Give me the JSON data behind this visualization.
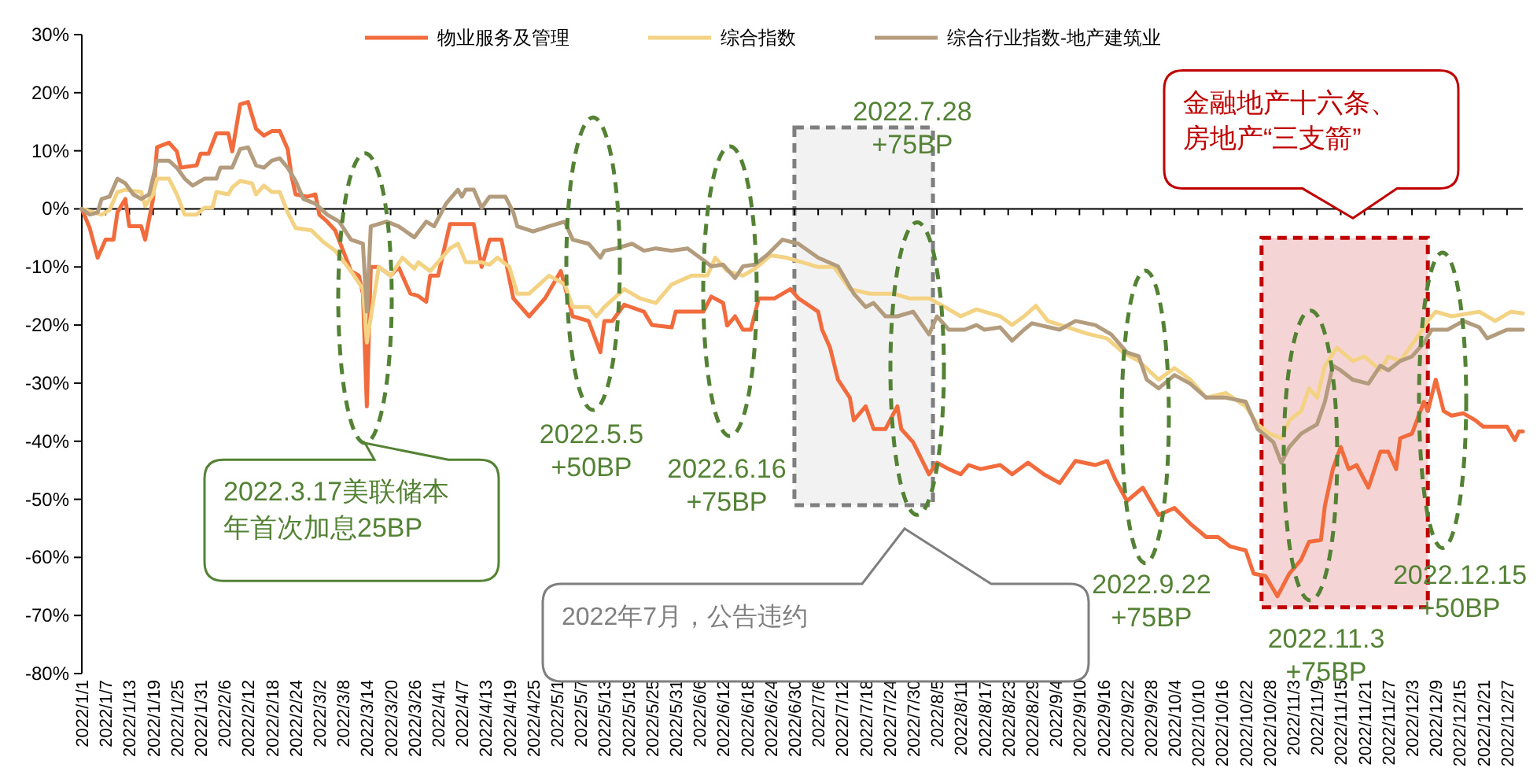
{
  "chart_data": {
    "type": "line",
    "legend": "top",
    "xlim": [
      "2022-01-01",
      "2022-12-31"
    ],
    "ylim": [
      -80,
      30
    ],
    "yticks": [
      {
        "value": 30,
        "label": "30%"
      },
      {
        "value": 20,
        "label": "20%"
      },
      {
        "value": 10,
        "label": "10%"
      },
      {
        "value": 0,
        "label": "0%"
      },
      {
        "value": -10,
        "label": "-10%"
      },
      {
        "value": -20,
        "label": "-20%"
      },
      {
        "value": -30,
        "label": "-30%"
      },
      {
        "value": -40,
        "label": "-40%"
      },
      {
        "value": -50,
        "label": "-50%"
      },
      {
        "value": -60,
        "label": "-60%"
      },
      {
        "value": -70,
        "label": "-70%"
      },
      {
        "value": -80,
        "label": "-80%"
      }
    ],
    "xticks": [
      {
        "value": "2022-01-01",
        "label": "2022/1/1"
      },
      {
        "value": "2022-01-07",
        "label": "2022/1/7"
      },
      {
        "value": "2022-01-13",
        "label": "2022/1/13"
      },
      {
        "value": "2022-01-19",
        "label": "2022/1/19"
      },
      {
        "value": "2022-01-25",
        "label": "2022/1/25"
      },
      {
        "value": "2022-01-31",
        "label": "2022/1/31"
      },
      {
        "value": "2022-02-06",
        "label": "2022/2/6"
      },
      {
        "value": "2022-02-12",
        "label": "2022/2/12"
      },
      {
        "value": "2022-02-18",
        "label": "2022/2/18"
      },
      {
        "value": "2022-02-24",
        "label": "2022/2/24"
      },
      {
        "value": "2022-03-02",
        "label": "2022/3/2"
      },
      {
        "value": "2022-03-08",
        "label": "2022/3/8"
      },
      {
        "value": "2022-03-14",
        "label": "2022/3/14"
      },
      {
        "value": "2022-03-20",
        "label": "2022/3/20"
      },
      {
        "value": "2022-03-26",
        "label": "2022/3/26"
      },
      {
        "value": "2022-04-01",
        "label": "2022/4/1"
      },
      {
        "value": "2022-04-07",
        "label": "2022/4/7"
      },
      {
        "value": "2022-04-13",
        "label": "2022/4/13"
      },
      {
        "value": "2022-04-19",
        "label": "2022/4/19"
      },
      {
        "value": "2022-04-25",
        "label": "2022/4/25"
      },
      {
        "value": "2022-05-01",
        "label": "2022/5/1"
      },
      {
        "value": "2022-05-07",
        "label": "2022/5/7"
      },
      {
        "value": "2022-05-13",
        "label": "2022/5/13"
      },
      {
        "value": "2022-05-19",
        "label": "2022/5/19"
      },
      {
        "value": "2022-05-25",
        "label": "2022/5/25"
      },
      {
        "value": "2022-05-31",
        "label": "2022/5/31"
      },
      {
        "value": "2022-06-06",
        "label": "2022/6/6"
      },
      {
        "value": "2022-06-12",
        "label": "2022/6/12"
      },
      {
        "value": "2022-06-18",
        "label": "2022/6/18"
      },
      {
        "value": "2022-06-24",
        "label": "2022/6/24"
      },
      {
        "value": "2022-06-30",
        "label": "2022/6/30"
      },
      {
        "value": "2022-07-06",
        "label": "2022/7/6"
      },
      {
        "value": "2022-07-12",
        "label": "2022/7/12"
      },
      {
        "value": "2022-07-18",
        "label": "2022/7/18"
      },
      {
        "value": "2022-07-24",
        "label": "2022/7/24"
      },
      {
        "value": "2022-07-30",
        "label": "2022/7/30"
      },
      {
        "value": "2022-08-05",
        "label": "2022/8/5"
      },
      {
        "value": "2022-08-11",
        "label": "2022/8/11"
      },
      {
        "value": "2022-08-17",
        "label": "2022/8/17"
      },
      {
        "value": "2022-08-23",
        "label": "2022/8/23"
      },
      {
        "value": "2022-08-29",
        "label": "2022/8/29"
      },
      {
        "value": "2022-09-04",
        "label": "2022/9/4"
      },
      {
        "value": "2022-09-10",
        "label": "2022/9/10"
      },
      {
        "value": "2022-09-16",
        "label": "2022/9/16"
      },
      {
        "value": "2022-09-22",
        "label": "2022/9/22"
      },
      {
        "value": "2022-09-28",
        "label": "2022/9/28"
      },
      {
        "value": "2022-10-04",
        "label": "2022/10/4"
      },
      {
        "value": "2022-10-10",
        "label": "2022/10/10"
      },
      {
        "value": "2022-10-16",
        "label": "2022/10/16"
      },
      {
        "value": "2022-10-22",
        "label": "2022/10/22"
      },
      {
        "value": "2022-10-28",
        "label": "2022/10/28"
      },
      {
        "value": "2022-11-03",
        "label": "2022/11/3"
      },
      {
        "value": "2022-11-09",
        "label": "2022/11/9"
      },
      {
        "value": "2022-11-15",
        "label": "2022/11/15"
      },
      {
        "value": "2022-11-21",
        "label": "2022/11/21"
      },
      {
        "value": "2022-11-27",
        "label": "2022/11/27"
      },
      {
        "value": "2022-12-03",
        "label": "2022/12/3"
      },
      {
        "value": "2022-12-09",
        "label": "2022/12/9"
      },
      {
        "value": "2022-12-15",
        "label": "2022/12/15"
      },
      {
        "value": "2022-12-21",
        "label": "2022/12/21"
      },
      {
        "value": "2022-12-27",
        "label": "2022/12/27"
      }
    ],
    "bands": [
      {
        "axis": "x",
        "from": "2022-06-30",
        "to": "2022-08-04",
        "color": "#f2f2f2"
      },
      {
        "axis": "x",
        "from": "2022-10-26",
        "to": "2022-12-07",
        "color": "#f4d4d4"
      }
    ],
    "series": [
      {
        "name": "物业服务及管理",
        "color": "#f26b3d",
        "x": [
          "2022-01-01",
          "2022-01-03",
          "2022-01-05",
          "2022-01-07",
          "2022-01-09",
          "2022-01-10",
          "2022-01-12",
          "2022-01-13",
          "2022-01-16",
          "2022-01-17",
          "2022-01-19",
          "2022-01-20",
          "2022-01-23",
          "2022-01-25",
          "2022-01-26",
          "2022-01-30",
          "2022-01-31",
          "2022-02-02",
          "2022-02-04",
          "2022-02-07",
          "2022-02-08",
          "2022-02-10",
          "2022-02-12",
          "2022-02-14",
          "2022-02-16",
          "2022-02-18",
          "2022-02-20",
          "2022-02-22",
          "2022-02-23",
          "2022-02-24",
          "2022-02-27",
          "2022-03-01",
          "2022-03-02",
          "2022-03-04",
          "2022-03-06",
          "2022-03-10",
          "2022-03-12",
          "2022-03-13",
          "2022-03-14",
          "2022-03-15",
          "2022-03-17",
          "2022-03-20",
          "2022-03-22",
          "2022-03-25",
          "2022-03-27",
          "2022-03-29",
          "2022-03-30",
          "2022-04-01",
          "2022-04-04",
          "2022-04-10",
          "2022-04-12",
          "2022-04-14",
          "2022-04-17",
          "2022-04-20",
          "2022-04-24",
          "2022-04-28",
          "2022-05-02",
          "2022-05-05",
          "2022-05-09",
          "2022-05-12",
          "2022-05-13",
          "2022-05-15",
          "2022-05-18",
          "2022-05-23",
          "2022-05-25",
          "2022-05-30",
          "2022-05-31",
          "2022-06-07",
          "2022-06-09",
          "2022-06-12",
          "2022-06-13",
          "2022-06-15",
          "2022-06-17",
          "2022-06-19",
          "2022-06-21",
          "2022-06-25",
          "2022-06-29",
          "2022-07-01",
          "2022-07-06",
          "2022-07-07",
          "2022-07-09",
          "2022-07-11",
          "2022-07-14",
          "2022-07-15",
          "2022-07-18",
          "2022-07-20",
          "2022-07-23",
          "2022-07-26",
          "2022-07-27",
          "2022-07-30",
          "2022-08-03",
          "2022-08-05",
          "2022-08-08",
          "2022-08-11",
          "2022-08-13",
          "2022-08-16",
          "2022-08-21",
          "2022-08-24",
          "2022-08-28",
          "2022-09-01",
          "2022-09-05",
          "2022-09-09",
          "2022-09-14",
          "2022-09-17",
          "2022-09-19",
          "2022-09-22",
          "2022-09-26",
          "2022-09-30",
          "2022-10-04",
          "2022-10-08",
          "2022-10-12",
          "2022-10-15",
          "2022-10-18",
          "2022-10-22",
          "2022-10-24",
          "2022-10-27",
          "2022-10-30",
          "2022-11-02",
          "2022-11-05",
          "2022-11-07",
          "2022-11-10",
          "2022-11-11",
          "2022-11-13",
          "2022-11-15",
          "2022-11-17",
          "2022-11-19",
          "2022-11-22",
          "2022-11-25",
          "2022-11-27",
          "2022-11-29",
          "2022-11-30",
          "2022-12-03",
          "2022-12-06",
          "2022-12-07",
          "2022-12-09",
          "2022-12-11",
          "2022-12-13",
          "2022-12-16",
          "2022-12-19",
          "2022-12-21",
          "2022-12-27",
          "2022-12-29",
          "2022-12-30",
          "2022-12-31"
        ],
        "values": [
          0,
          -3.3,
          -8.4,
          -5.3,
          -5.3,
          -0.6,
          1.7,
          -3,
          -3,
          -5.3,
          1.7,
          10.6,
          11.4,
          9.9,
          7.1,
          7.5,
          9.5,
          9.5,
          13,
          13,
          9.9,
          18,
          18.4,
          13.8,
          12.6,
          13.4,
          13.4,
          10.3,
          5.6,
          2.5,
          2.1,
          2.5,
          -1,
          -2.2,
          -3.7,
          -10.7,
          -11.5,
          -14.6,
          -34,
          -10,
          -10,
          -11.5,
          -10,
          -14.6,
          -15,
          -16,
          -11.5,
          -11.5,
          -2.6,
          -2.6,
          -10,
          -5.3,
          -5.3,
          -15.4,
          -18.5,
          -15.4,
          -10.7,
          -18.5,
          -19.3,
          -24.7,
          -19.3,
          -19.3,
          -16.5,
          -17.7,
          -20,
          -20.4,
          -17.7,
          -17.7,
          -15.1,
          -16.2,
          -20.1,
          -18.5,
          -20.8,
          -20.8,
          -15.4,
          -15.4,
          -13.8,
          -15.4,
          -17.7,
          -20.8,
          -23.9,
          -29.4,
          -32.5,
          -36.4,
          -34,
          -37.9,
          -37.9,
          -34,
          -37.9,
          -40.2,
          -45.7,
          -43.7,
          -44.8,
          -45.7,
          -44.1,
          -44.8,
          -44.1,
          -45.7,
          -43.7,
          -45.7,
          -47.2,
          -43.4,
          -44.1,
          -43.4,
          -46.5,
          -50.3,
          -48,
          -52.7,
          -51.5,
          -54.2,
          -56.5,
          -56.5,
          -58.1,
          -58.8,
          -62.8,
          -63.2,
          -66.7,
          -62.8,
          -60.4,
          -57.3,
          -57,
          -51.1,
          -44.8,
          -41,
          -44.8,
          -44.1,
          -48,
          -41.8,
          -41.8,
          -44.8,
          -39.5,
          -38.7,
          -33.2,
          -34.8,
          -29.4,
          -34.8,
          -35.6,
          -35.2,
          -36.4,
          -37.5,
          -37.5,
          -39.8,
          -38.3,
          -38.3
        ]
      },
      {
        "name": "综合指数",
        "color": "#f3d383",
        "x": [
          "2022-01-01",
          "2022-01-04",
          "2022-01-06",
          "2022-01-08",
          "2022-01-10",
          "2022-01-12",
          "2022-01-16",
          "2022-01-17",
          "2022-01-19",
          "2022-01-20",
          "2022-01-23",
          "2022-01-25",
          "2022-01-27",
          "2022-01-30",
          "2022-02-01",
          "2022-02-03",
          "2022-02-04",
          "2022-02-07",
          "2022-02-08",
          "2022-02-10",
          "2022-02-13",
          "2022-02-14",
          "2022-02-16",
          "2022-02-18",
          "2022-02-20",
          "2022-02-22",
          "2022-02-24",
          "2022-02-28",
          "2022-03-03",
          "2022-03-06",
          "2022-03-10",
          "2022-03-13",
          "2022-03-14",
          "2022-03-17",
          "2022-03-20",
          "2022-03-23",
          "2022-03-26",
          "2022-03-27",
          "2022-03-30",
          "2022-04-02",
          "2022-04-04",
          "2022-04-06",
          "2022-04-08",
          "2022-04-12",
          "2022-04-14",
          "2022-04-16",
          "2022-04-19",
          "2022-04-21",
          "2022-04-24",
          "2022-04-29",
          "2022-05-03",
          "2022-05-05",
          "2022-05-09",
          "2022-05-11",
          "2022-05-13",
          "2022-05-18",
          "2022-05-22",
          "2022-05-26",
          "2022-05-30",
          "2022-06-04",
          "2022-06-08",
          "2022-06-10",
          "2022-06-13",
          "2022-06-17",
          "2022-06-20",
          "2022-06-24",
          "2022-06-28",
          "2022-07-02",
          "2022-07-06",
          "2022-07-10",
          "2022-07-14",
          "2022-07-19",
          "2022-07-25",
          "2022-07-29",
          "2022-08-03",
          "2022-08-07",
          "2022-08-11",
          "2022-08-15",
          "2022-08-21",
          "2022-08-24",
          "2022-08-27",
          "2022-08-30",
          "2022-09-02",
          "2022-09-12",
          "2022-09-17",
          "2022-09-21",
          "2022-09-25",
          "2022-09-30",
          "2022-10-04",
          "2022-10-08",
          "2022-10-12",
          "2022-10-17",
          "2022-10-22",
          "2022-10-25",
          "2022-10-28",
          "2022-10-31",
          "2022-11-02",
          "2022-11-05",
          "2022-11-07",
          "2022-11-09",
          "2022-11-11",
          "2022-11-14",
          "2022-11-18",
          "2022-11-21",
          "2022-11-25",
          "2022-11-27",
          "2022-11-30",
          "2022-12-04",
          "2022-12-07",
          "2022-12-09",
          "2022-12-13",
          "2022-12-20",
          "2022-12-24",
          "2022-12-28",
          "2022-12-31"
        ],
        "values": [
          0,
          -0.6,
          -1,
          -0.2,
          2.9,
          3.3,
          2.9,
          0.5,
          2.5,
          5.2,
          5.2,
          2.5,
          -1,
          -1,
          0.2,
          0.2,
          2.9,
          2.5,
          3.7,
          4.8,
          4.4,
          2.5,
          4,
          2.9,
          2.9,
          -0.6,
          -3.3,
          -3.7,
          -5.7,
          -7.2,
          -10.7,
          -13.8,
          -23,
          -10,
          -11.5,
          -8.4,
          -10.3,
          -9.2,
          -10.7,
          -8.4,
          -6.8,
          -6,
          -9.2,
          -9.2,
          -9.6,
          -8.4,
          -10,
          -14.6,
          -14.6,
          -11.5,
          -13,
          -16.9,
          -16.9,
          -18.5,
          -16.9,
          -13.8,
          -15.4,
          -16.2,
          -13,
          -11.5,
          -11.5,
          -8.4,
          -10.7,
          -11.5,
          -10.3,
          -8,
          -8.4,
          -9.2,
          -10,
          -10,
          -13.8,
          -14.6,
          -14.6,
          -15.4,
          -15.4,
          -16.9,
          -18.5,
          -17.3,
          -18.5,
          -20,
          -18.5,
          -16.7,
          -19.3,
          -21.5,
          -22.3,
          -24.7,
          -26.2,
          -29.4,
          -27.4,
          -29.4,
          -32.5,
          -31.7,
          -34,
          -37.1,
          -38.7,
          -39.5,
          -36.4,
          -34.8,
          -30.9,
          -32.5,
          -27,
          -23.9,
          -26.2,
          -25.4,
          -27.8,
          -25.4,
          -26.2,
          -22.4,
          -19.3,
          -17.7,
          -18.5,
          -17.7,
          -19.3,
          -17.7,
          -18
        ]
      },
      {
        "name": "综合行业指数-地产建筑业",
        "color": "#b39c7d",
        "x": [
          "2022-01-01",
          "2022-01-03",
          "2022-01-05",
          "2022-01-06",
          "2022-01-08",
          "2022-01-10",
          "2022-01-12",
          "2022-01-14",
          "2022-01-16",
          "2022-01-18",
          "2022-01-20",
          "2022-01-23",
          "2022-01-25",
          "2022-01-27",
          "2022-01-29",
          "2022-02-01",
          "2022-02-04",
          "2022-02-05",
          "2022-02-08",
          "2022-02-10",
          "2022-02-12",
          "2022-02-14",
          "2022-02-16",
          "2022-02-18",
          "2022-02-20",
          "2022-02-22",
          "2022-02-24",
          "2022-02-26",
          "2022-03-01",
          "2022-03-04",
          "2022-03-07",
          "2022-03-10",
          "2022-03-13",
          "2022-03-14",
          "2022-03-15",
          "2022-03-19",
          "2022-03-22",
          "2022-03-26",
          "2022-03-29",
          "2022-03-31",
          "2022-04-03",
          "2022-04-06",
          "2022-04-07",
          "2022-04-08",
          "2022-04-10",
          "2022-04-12",
          "2022-04-14",
          "2022-04-18",
          "2022-04-20",
          "2022-04-21",
          "2022-04-25",
          "2022-04-29",
          "2022-05-03",
          "2022-05-05",
          "2022-05-09",
          "2022-05-12",
          "2022-05-13",
          "2022-05-16",
          "2022-05-20",
          "2022-05-23",
          "2022-05-26",
          "2022-05-30",
          "2022-06-03",
          "2022-06-07",
          "2022-06-09",
          "2022-06-12",
          "2022-06-15",
          "2022-06-17",
          "2022-06-20",
          "2022-06-23",
          "2022-06-27",
          "2022-07-01",
          "2022-07-06",
          "2022-07-11",
          "2022-07-15",
          "2022-07-18",
          "2022-07-20",
          "2022-07-23",
          "2022-07-26",
          "2022-07-30",
          "2022-08-03",
          "2022-08-05",
          "2022-08-08",
          "2022-08-12",
          "2022-08-15",
          "2022-08-17",
          "2022-08-21",
          "2022-08-24",
          "2022-08-27",
          "2022-08-29",
          "2022-09-05",
          "2022-09-09",
          "2022-09-14",
          "2022-09-18",
          "2022-09-22",
          "2022-09-25",
          "2022-09-27",
          "2022-09-30",
          "2022-10-04",
          "2022-10-08",
          "2022-10-12",
          "2022-10-17",
          "2022-10-22",
          "2022-10-25",
          "2022-10-29",
          "2022-10-31",
          "2022-11-02",
          "2022-11-05",
          "2022-11-07",
          "2022-11-09",
          "2022-11-11",
          "2022-11-13",
          "2022-11-15",
          "2022-11-18",
          "2022-11-22",
          "2022-11-25",
          "2022-11-27",
          "2022-11-30",
          "2022-12-03",
          "2022-12-06",
          "2022-12-08",
          "2022-12-12",
          "2022-12-16",
          "2022-12-20",
          "2022-12-22",
          "2022-12-27",
          "2022-12-31"
        ],
        "values": [
          0,
          -1,
          -0.6,
          1.7,
          2.1,
          5.2,
          4.4,
          2.5,
          1.7,
          2.5,
          8.3,
          8.3,
          7.1,
          5.2,
          4,
          5.2,
          5.2,
          7.1,
          7.1,
          10.3,
          10.6,
          7.5,
          7.1,
          8.3,
          8.7,
          7.1,
          4.8,
          1.7,
          0.9,
          -1,
          -2.2,
          -5.3,
          -6,
          -17.7,
          -3,
          -2.2,
          -3,
          -4.9,
          -2.2,
          -3,
          0.9,
          3.3,
          2.1,
          3.3,
          3.3,
          0.2,
          2.1,
          2.1,
          -0.6,
          -3,
          -3.9,
          -3,
          -2.2,
          -5.3,
          -6,
          -8.4,
          -7.2,
          -6.8,
          -6,
          -7.2,
          -6.8,
          -7.2,
          -6.8,
          -8.8,
          -9.9,
          -9.6,
          -11.9,
          -9.9,
          -9.6,
          -8,
          -5.3,
          -6,
          -8.4,
          -9.9,
          -14.6,
          -16.9,
          -16.2,
          -18.5,
          -18.5,
          -17.7,
          -21.6,
          -18.5,
          -20.8,
          -20.8,
          -20,
          -20.8,
          -20.4,
          -22.7,
          -20.8,
          -19.7,
          -20.8,
          -19.3,
          -20,
          -21.6,
          -24.7,
          -25.4,
          -29.4,
          -30.9,
          -28.6,
          -30.1,
          -32.5,
          -32.5,
          -33.2,
          -37.9,
          -40.2,
          -43.7,
          -41,
          -38.7,
          -37.9,
          -37.1,
          -33.2,
          -27,
          -27.8,
          -29.4,
          -30.1,
          -27,
          -27.8,
          -26.2,
          -25.4,
          -23.1,
          -20.8,
          -20.8,
          -19.3,
          -20.4,
          -22.3,
          -20.8,
          -20.8
        ]
      }
    ],
    "annotations": [
      "2022.3.17美联储本年首次加息25BP",
      "2022.5.5 +50BP",
      "2022.6.16 +75BP",
      "2022.7.28 +75BP",
      "2022.9.22 +75BP",
      "2022.11.3 +75BP",
      "2022.12.15 +50BP",
      "金融地产十六条、房地产“三支箭”",
      "2022年7月，公告违约"
    ]
  }
}
